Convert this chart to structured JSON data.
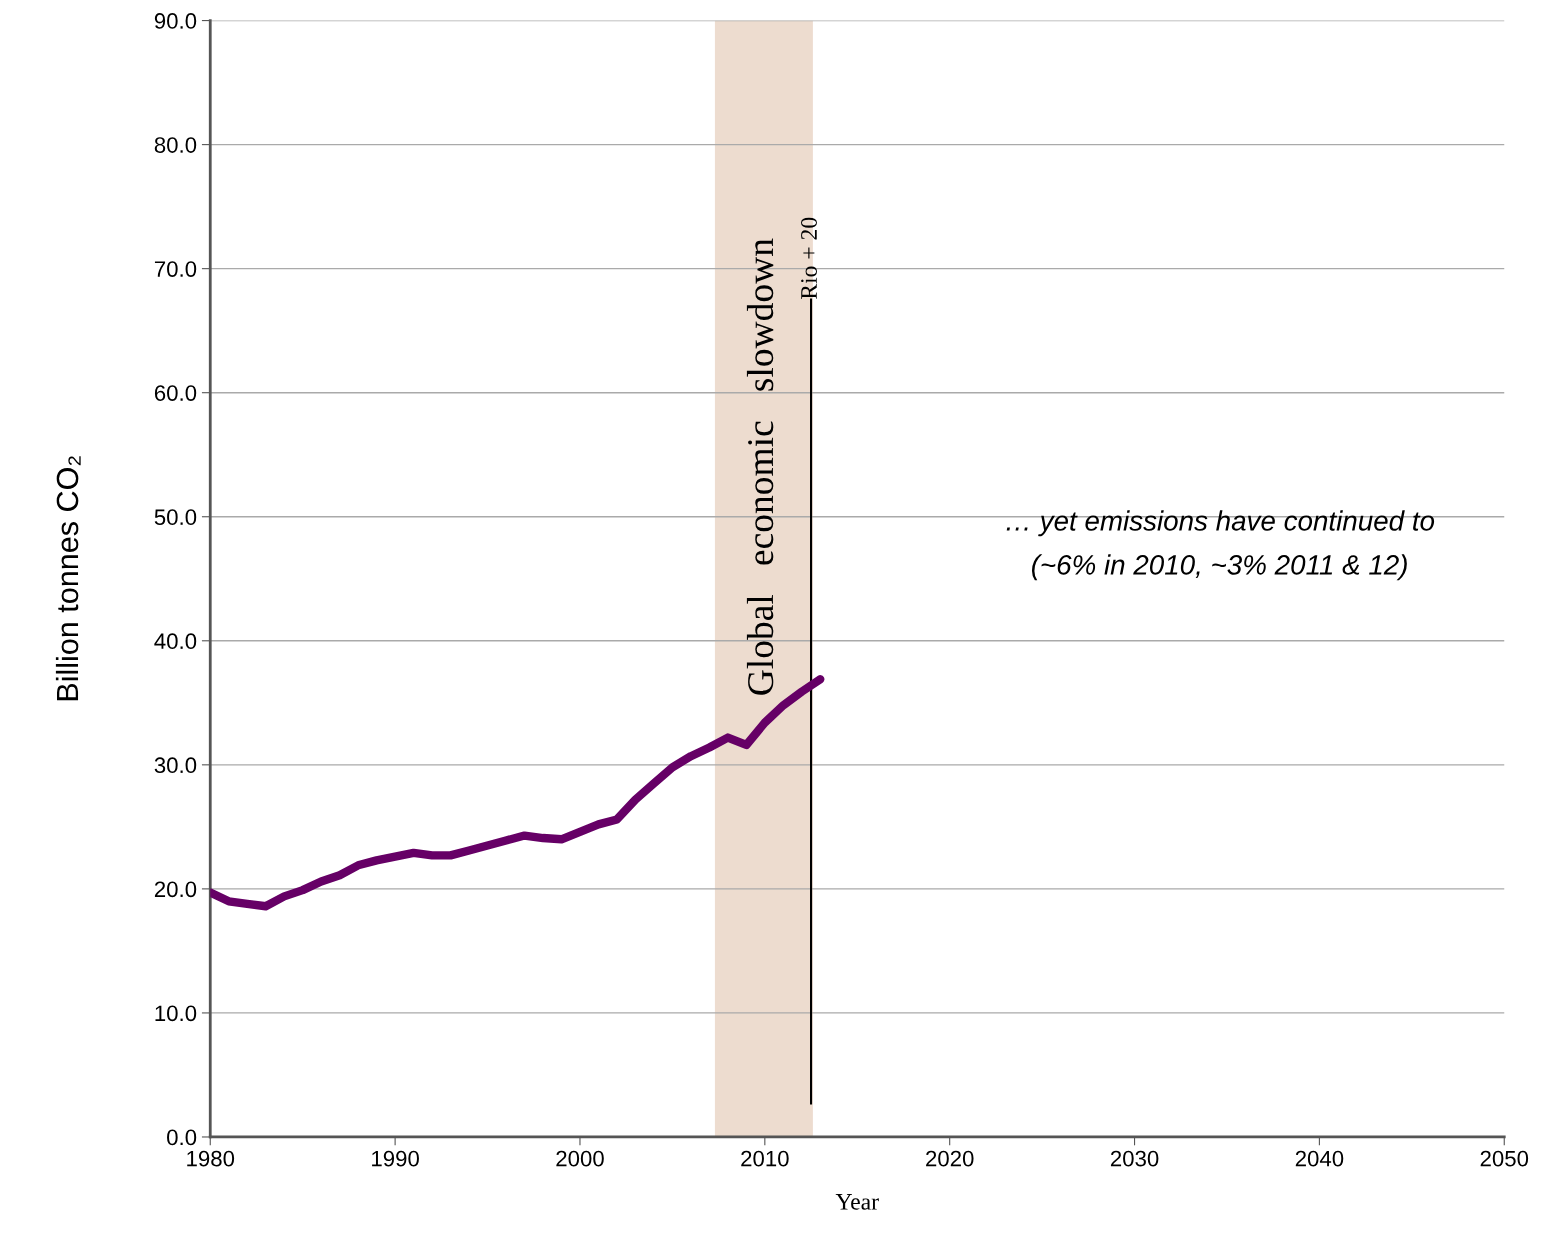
{
  "chart_data": {
    "type": "line",
    "xlabel": "Year",
    "ylabel": "Billion tonnes CO₂",
    "x": [
      1980,
      1981,
      1982,
      1983,
      1984,
      1985,
      1986,
      1987,
      1988,
      1989,
      1990,
      1991,
      1992,
      1993,
      1994,
      1995,
      1996,
      1997,
      1998,
      1999,
      2000,
      2001,
      2002,
      2003,
      2004,
      2005,
      2006,
      2007,
      2008,
      2009,
      2010,
      2011,
      2012,
      2013
    ],
    "series": [
      {
        "color": "#660066",
        "values": [
          19.7,
          19.0,
          18.8,
          18.6,
          19.4,
          19.9,
          20.6,
          21.1,
          21.9,
          22.3,
          22.6,
          22.9,
          22.7,
          22.7,
          23.1,
          23.5,
          23.9,
          24.3,
          24.1,
          24.0,
          24.6,
          25.2,
          25.6,
          27.2,
          28.5,
          29.8,
          30.7,
          31.4,
          32.2,
          31.6,
          33.4,
          34.8,
          35.9,
          36.9
        ]
      }
    ],
    "xlim": [
      1980,
      2050
    ],
    "xticks": [
      1980,
      1990,
      2000,
      2010,
      2020,
      2030,
      2040,
      2050
    ],
    "ylim": [
      0,
      90
    ],
    "yticks": [
      {
        "value": 0,
        "label": "0.0"
      },
      {
        "value": 10,
        "label": "10.0"
      },
      {
        "value": 20,
        "label": "20.0"
      },
      {
        "value": 30,
        "label": "30.0"
      },
      {
        "value": 40,
        "label": "40.0"
      },
      {
        "value": 50,
        "label": "50.0"
      },
      {
        "value": 60,
        "label": "60.0"
      },
      {
        "value": 70,
        "label": "70.0"
      },
      {
        "value": 80,
        "label": "80.0"
      },
      {
        "value": 90,
        "label": "90.0"
      }
    ],
    "grid": "y",
    "marker": "none",
    "line_style": "solid",
    "bands": [
      {
        "axis": "x",
        "from": 2007.3,
        "to": 2012.6,
        "label": "Global   economic   slowdown",
        "color": "#eddccf"
      }
    ],
    "ref_lines": [
      {
        "axis": "x",
        "value": 2012.5,
        "label": "Rio + 20",
        "color": "#000000"
      }
    ],
    "annotations": [
      "… yet emissions have continued to\n(~6% in 2010, ~3% 2011 & 12)"
    ]
  }
}
